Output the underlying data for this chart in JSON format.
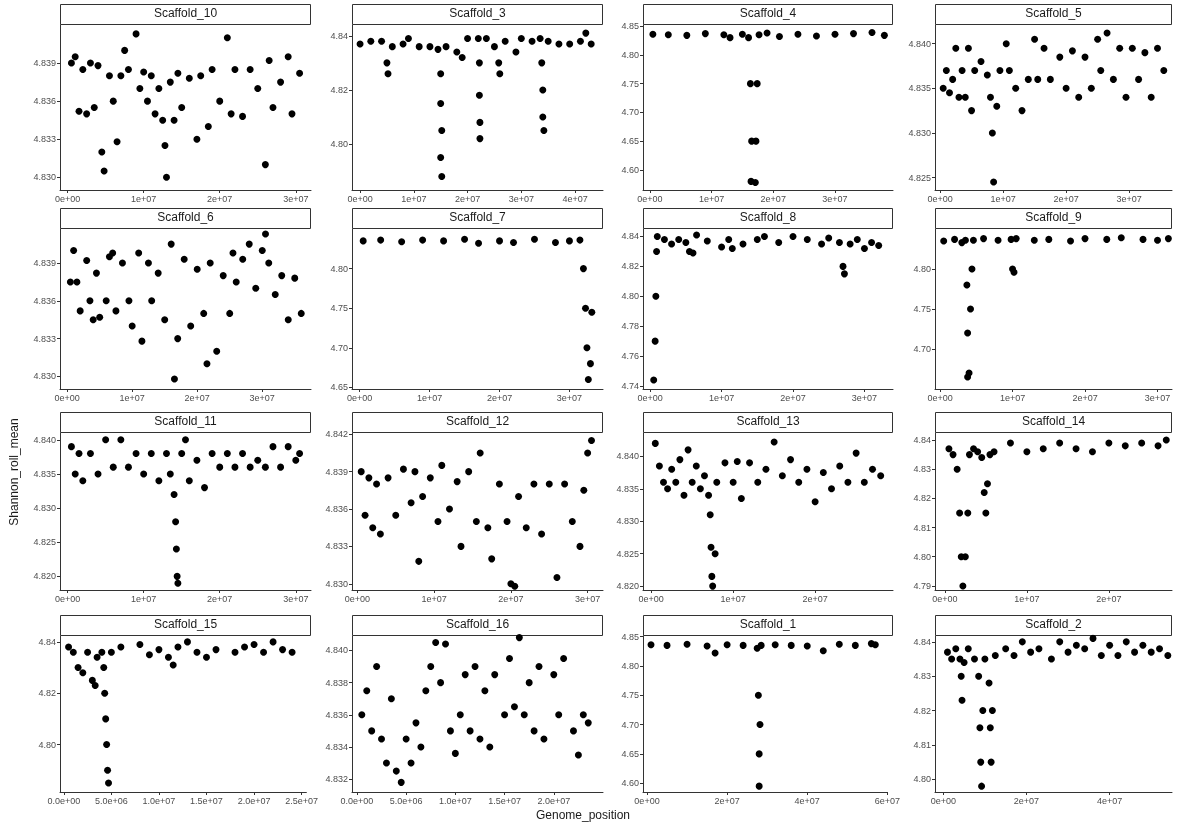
{
  "chart_data": [
    {
      "type": "scatter",
      "title": "Scaffold_10",
      "color": "#000000",
      "marker": "circle",
      "xlim": [
        -1000000,
        32000000
      ],
      "xticks": [
        {
          "value": 0,
          "label": "0e+00"
        },
        {
          "value": 10000000,
          "label": "1e+07"
        },
        {
          "value": 20000000,
          "label": "2e+07"
        },
        {
          "value": 30000000,
          "label": "3e+07"
        }
      ],
      "ylim": [
        4.829,
        4.842
      ],
      "yticks": [
        {
          "value": 4.83,
          "label": "4.830"
        },
        4.833,
        4.836,
        4.839
      ],
      "x": [
        500000.0,
        1000000.0,
        1500000.0,
        2000000.0,
        2500000.0,
        3000000.0,
        3500000.0,
        4000000.0,
        4500000.0,
        4800000.0,
        5500000.0,
        6000000.0,
        6500000.0,
        7000000.0,
        7500000.0,
        8000000.0,
        9000000.0,
        9500000.0,
        10000000.0,
        10500000.0,
        11000000.0,
        11500000.0,
        12000000.0,
        12500000.0,
        12800000.0,
        13000000.0,
        13500000.0,
        14000000.0,
        14500000.0,
        15000000.0,
        16000000.0,
        17000000.0,
        17500000.0,
        18500000.0,
        19000000.0,
        20000000.0,
        21000000.0,
        21500000.0,
        22000000.0,
        23000000.0,
        24000000.0,
        25000000.0,
        26000000.0,
        26500000.0,
        27000000.0,
        28000000.0,
        29000000.0,
        29500000.0,
        30500000.0
      ],
      "values": [
        4.839,
        4.8395,
        4.8352,
        4.8385,
        4.835,
        4.839,
        4.8355,
        4.8388,
        4.832,
        4.8305,
        4.838,
        4.836,
        4.8328,
        4.838,
        4.84,
        4.8385,
        4.8413,
        4.837,
        4.8383,
        4.836,
        4.838,
        4.835,
        4.837,
        4.8345,
        4.8325,
        4.83,
        4.8375,
        4.8345,
        4.8382,
        4.8355,
        4.8378,
        4.833,
        4.838,
        4.834,
        4.8385,
        4.836,
        4.841,
        4.835,
        4.8385,
        4.8348,
        4.8385,
        4.837,
        4.831,
        4.8392,
        4.8355,
        4.8375,
        4.8395,
        4.835,
        4.8382
      ]
    },
    {
      "type": "scatter",
      "title": "Scaffold_3",
      "color": "#000000",
      "marker": "circle",
      "xlim": [
        -1500000,
        45200000
      ],
      "xticks": [
        {
          "value": 0,
          "label": "0e+00"
        },
        {
          "value": 10000000,
          "label": "1e+07"
        },
        {
          "value": 20000000,
          "label": "2e+07"
        },
        {
          "value": 30000000,
          "label": "3e+07"
        },
        {
          "value": 40000000,
          "label": "4e+07"
        }
      ],
      "ylim": [
        4.783,
        4.844
      ],
      "yticks": [
        {
          "value": 4.8,
          "label": "4.80"
        },
        4.82,
        4.84
      ],
      "x": [
        0,
        2000000.0,
        4000000.0,
        5000000.0,
        5200000.0,
        6000000.0,
        8000000.0,
        9000000.0,
        11000000.0,
        13000000.0,
        14500000.0,
        15000000.0,
        15000000.0,
        15200000.0,
        15000000.0,
        15200000.0,
        16000000.0,
        18000000.0,
        19000000.0,
        20000000.0,
        22000000.0,
        22200000.0,
        22200000.0,
        22300000.0,
        22300000.0,
        23500000.0,
        25000000.0,
        25800000.0,
        26000000.0,
        27000000.0,
        29000000.0,
        30000000.0,
        32000000.0,
        33500000.0,
        33800000.0,
        34000000.0,
        34000000.0,
        34200000.0,
        35000000.0,
        37000000.0,
        39000000.0,
        41000000.0,
        42000000.0,
        43000000.0
      ],
      "values": [
        4.837,
        4.838,
        4.838,
        4.83,
        4.826,
        4.836,
        4.837,
        4.839,
        4.836,
        4.836,
        4.835,
        4.826,
        4.815,
        4.805,
        4.795,
        4.788,
        4.836,
        4.834,
        4.832,
        4.839,
        4.839,
        4.83,
        4.818,
        4.808,
        4.802,
        4.839,
        4.836,
        4.83,
        4.826,
        4.838,
        4.834,
        4.839,
        4.838,
        4.839,
        4.83,
        4.82,
        4.81,
        4.805,
        4.838,
        4.837,
        4.837,
        4.838,
        4.841,
        4.837
      ]
    },
    {
      "type": "scatter",
      "title": "Scaffold_4",
      "color": "#000000",
      "marker": "circle",
      "xlim": [
        -1100000,
        39400000
      ],
      "xticks": [
        {
          "value": 0,
          "label": "0e+00"
        },
        {
          "value": 10000000,
          "label": "1e+07"
        },
        {
          "value": 20000000,
          "label": "2e+07"
        },
        {
          "value": 30000000,
          "label": "3e+07"
        }
      ],
      "ylim": [
        4.565,
        4.852
      ],
      "yticks": [
        {
          "value": 4.6,
          "label": "4.60"
        },
        4.65,
        {
          "value": 4.7,
          "label": "4.70"
        },
        4.75,
        {
          "value": 4.8,
          "label": "4.80"
        },
        4.85
      ],
      "x": [
        500000.0,
        3000000.0,
        6000000.0,
        9000000.0,
        12000000.0,
        13000000.0,
        15000000.0,
        16000000.0,
        16300000.0,
        16500000.0,
        16400000.0,
        17100000.0,
        17200000.0,
        17400000.0,
        17700000.0,
        19000000.0,
        21000000.0,
        24000000.0,
        27000000.0,
        30000000.0,
        33000000.0,
        36000000.0,
        38000000.0
      ],
      "values": [
        4.836,
        4.835,
        4.834,
        4.837,
        4.835,
        4.83,
        4.836,
        4.83,
        4.75,
        4.65,
        4.58,
        4.578,
        4.65,
        4.75,
        4.835,
        4.838,
        4.832,
        4.836,
        4.833,
        4.836,
        4.837,
        4.839,
        4.834
      ]
    },
    {
      "type": "scatter",
      "title": "Scaffold_5",
      "color": "#000000",
      "marker": "circle",
      "xlim": [
        -800000,
        36800000
      ],
      "xticks": [
        {
          "value": 0,
          "label": "0e+00"
        },
        {
          "value": 10000000,
          "label": "1e+07"
        },
        {
          "value": 20000000,
          "label": "2e+07"
        },
        {
          "value": 30000000,
          "label": "3e+07"
        }
      ],
      "ylim": [
        4.8236,
        4.8421
      ],
      "yticks": [
        4.825,
        {
          "value": 4.83,
          "label": "4.830"
        },
        4.835,
        {
          "value": 4.84,
          "label": "4.840"
        }
      ],
      "x": [
        500000.0,
        1000000.0,
        1500000.0,
        2000000.0,
        2500000.0,
        3000000.0,
        3500000.0,
        4000000.0,
        4500000.0,
        5000000.0,
        5500000.0,
        6500000.0,
        7500000.0,
        8000000.0,
        8300000.0,
        8500000.0,
        9000000.0,
        9500000.0,
        10500000.0,
        11000000.0,
        12000000.0,
        13000000.0,
        14000000.0,
        15000000.0,
        15500000.0,
        16500000.0,
        17500000.0,
        19000000.0,
        20000000.0,
        21000000.0,
        22000000.0,
        23000000.0,
        24000000.0,
        25000000.0,
        25500000.0,
        26500000.0,
        27500000.0,
        28500000.0,
        29500000.0,
        30500000.0,
        31500000.0,
        32500000.0,
        33500000.0,
        34500000.0,
        35500000.0
      ],
      "values": [
        4.835,
        4.837,
        4.8345,
        4.836,
        4.8395,
        4.834,
        4.837,
        4.834,
        4.8395,
        4.8325,
        4.837,
        4.838,
        4.8365,
        4.834,
        4.83,
        4.8245,
        4.833,
        4.837,
        4.84,
        4.837,
        4.835,
        4.8325,
        4.836,
        4.8405,
        4.836,
        4.8395,
        4.836,
        4.8385,
        4.835,
        4.8392,
        4.834,
        4.8385,
        4.835,
        4.8405,
        4.837,
        4.8412,
        4.836,
        4.8395,
        4.834,
        4.8395,
        4.836,
        4.839,
        4.834,
        4.8395,
        4.837
      ]
    },
    {
      "type": "scatter",
      "title": "Scaffold_6",
      "color": "#000000",
      "marker": "circle",
      "xlim": [
        -1100000,
        37500000
      ],
      "xticks": [
        {
          "value": 0,
          "label": "0e+00"
        },
        {
          "value": 10000000,
          "label": "1e+07"
        },
        {
          "value": 20000000,
          "label": "2e+07"
        },
        {
          "value": 30000000,
          "label": "3e+07"
        }
      ],
      "ylim": [
        4.829,
        4.8417
      ],
      "yticks": [
        {
          "value": 4.83,
          "label": "4.830"
        },
        4.833,
        4.836,
        4.839
      ],
      "x": [
        500000.0,
        1000000.0,
        1500000.0,
        2000000.0,
        3000000.0,
        3500000.0,
        4000000.0,
        4500000.0,
        5000000.0,
        6000000.0,
        6500000.0,
        7000000.0,
        7500000.0,
        8500000.0,
        9500000.0,
        10000000.0,
        11000000.0,
        11500000.0,
        12500000.0,
        13000000.0,
        14000000.0,
        15000000.0,
        16000000.0,
        16500000.0,
        17000000.0,
        18000000.0,
        19000000.0,
        20000000.0,
        21000000.0,
        21500000.0,
        22000000.0,
        23000000.0,
        24000000.0,
        25000000.0,
        25500000.0,
        26000000.0,
        27000000.0,
        28000000.0,
        29000000.0,
        30000000.0,
        30500000.0,
        31000000.0,
        32000000.0,
        33000000.0,
        34000000.0,
        35000000.0,
        36000000.0
      ],
      "values": [
        4.8375,
        4.84,
        4.8375,
        4.8352,
        4.8392,
        4.836,
        4.8345,
        4.8382,
        4.8347,
        4.836,
        4.8395,
        4.8398,
        4.8352,
        4.839,
        4.836,
        4.834,
        4.8398,
        4.8328,
        4.839,
        4.836,
        4.8382,
        4.8345,
        4.8405,
        4.8298,
        4.833,
        4.8393,
        4.834,
        4.8385,
        4.835,
        4.831,
        4.839,
        4.832,
        4.838,
        4.835,
        4.8398,
        4.8375,
        4.8393,
        4.8405,
        4.837,
        4.84,
        4.8413,
        4.839,
        4.8365,
        4.838,
        4.8345,
        4.8378,
        4.835
      ]
    },
    {
      "type": "scatter",
      "title": "Scaffold_7",
      "color": "#000000",
      "marker": "circle",
      "xlim": [
        -1100000,
        34800000
      ],
      "xticks": [
        {
          "value": 0,
          "label": "0e+00"
        },
        {
          "value": 10000000,
          "label": "1e+07"
        },
        {
          "value": 20000000,
          "label": "2e+07"
        },
        {
          "value": 30000000,
          "label": "3e+07"
        }
      ],
      "ylim": [
        4.648,
        4.85
      ],
      "yticks": [
        4.65,
        {
          "value": 4.7,
          "label": "4.70"
        },
        4.75,
        {
          "value": 4.8,
          "label": "4.80"
        }
      ],
      "x": [
        500000.0,
        3000000.0,
        6000000.0,
        9000000.0,
        12000000.0,
        15000000.0,
        17000000.0,
        20000000.0,
        22000000.0,
        25000000.0,
        28000000.0,
        30000000.0,
        31500000.0,
        32000000.0,
        32300000.0,
        32500000.0,
        32700000.0,
        33000000.0,
        33200000.0
      ],
      "values": [
        4.835,
        4.836,
        4.834,
        4.836,
        4.835,
        4.837,
        4.832,
        4.835,
        4.833,
        4.837,
        4.833,
        4.835,
        4.836,
        4.8,
        4.75,
        4.7,
        4.66,
        4.68,
        4.745
      ]
    },
    {
      "type": "scatter",
      "title": "Scaffold_8",
      "color": "#000000",
      "marker": "circle",
      "xlim": [
        -1000000,
        34000000
      ],
      "xticks": [
        {
          "value": 0,
          "label": "0e+00"
        },
        {
          "value": 10000000,
          "label": "1e+07"
        },
        {
          "value": 20000000,
          "label": "2e+07"
        },
        {
          "value": 30000000,
          "label": "3e+07"
        }
      ],
      "ylim": [
        4.738,
        4.845
      ],
      "yticks": [
        4.74,
        4.76,
        4.78,
        {
          "value": 4.8,
          "label": "4.80"
        },
        4.82,
        4.84
      ],
      "x": [
        500000.0,
        700000.0,
        800000.0,
        900000.0,
        1000000.0,
        2000000.0,
        3000000.0,
        4000000.0,
        5000000.0,
        5500000.0,
        6000000.0,
        6500000.0,
        8000000.0,
        10000000.0,
        11000000.0,
        11500000.0,
        13000000.0,
        15000000.0,
        16000000.0,
        18000000.0,
        20000000.0,
        22000000.0,
        24000000.0,
        25000000.0,
        26500000.0,
        27000000.0,
        27200000.0,
        28000000.0,
        29000000.0,
        30000000.0,
        31000000.0,
        32000000.0
      ],
      "values": [
        4.744,
        4.77,
        4.8,
        4.83,
        4.84,
        4.838,
        4.835,
        4.838,
        4.836,
        4.83,
        4.829,
        4.841,
        4.837,
        4.833,
        4.838,
        4.832,
        4.835,
        4.838,
        4.84,
        4.836,
        4.84,
        4.838,
        4.835,
        4.839,
        4.836,
        4.82,
        4.815,
        4.835,
        4.838,
        4.832,
        4.836,
        4.834
      ]
    },
    {
      "type": "scatter",
      "title": "Scaffold_9",
      "color": "#000000",
      "marker": "circle",
      "xlim": [
        -700000,
        32000000
      ],
      "xticks": [
        {
          "value": 0,
          "label": "0e+00"
        },
        {
          "value": 10000000,
          "label": "1e+07"
        },
        {
          "value": 20000000,
          "label": "2e+07"
        },
        {
          "value": 30000000,
          "label": "3e+07"
        }
      ],
      "ylim": [
        4.65,
        4.85
      ],
      "yticks": [
        {
          "value": 4.7,
          "label": "4.70"
        },
        4.75,
        {
          "value": 4.8,
          "label": "4.80"
        }
      ],
      "x": [
        500000.0,
        2000000.0,
        3000000.0,
        3500000.0,
        3700000.0,
        3800000.0,
        3800000.0,
        4000000.0,
        4200000.0,
        4400000.0,
        4600000.0,
        6000000.0,
        8000000.0,
        9800000.0,
        10000000.0,
        10200000.0,
        10500000.0,
        13000000.0,
        15000000.0,
        18000000.0,
        20000000.0,
        23000000.0,
        25000000.0,
        28000000.0,
        30000000.0,
        31500000.0
      ],
      "values": [
        4.835,
        4.837,
        4.833,
        4.836,
        4.78,
        4.72,
        4.665,
        4.67,
        4.75,
        4.8,
        4.836,
        4.838,
        4.836,
        4.837,
        4.8,
        4.796,
        4.838,
        4.836,
        4.837,
        4.835,
        4.838,
        4.837,
        4.839,
        4.837,
        4.836,
        4.838
      ]
    },
    {
      "type": "scatter",
      "title": "Scaffold_11",
      "ylabel": "Shannon_roll_mean",
      "color": "#000000",
      "marker": "circle",
      "xlim": [
        -1000000,
        32000000
      ],
      "xticks": [
        {
          "value": 0,
          "label": "0e+00"
        },
        {
          "value": 10000000,
          "label": "1e+07"
        },
        {
          "value": 20000000,
          "label": "2e+07"
        },
        {
          "value": 30000000,
          "label": "3e+07"
        }
      ],
      "ylim": [
        4.818,
        4.841
      ],
      "yticks": [
        {
          "value": 4.82,
          "label": "4.820"
        },
        4.825,
        {
          "value": 4.83,
          "label": "4.830"
        },
        4.835,
        {
          "value": 4.84,
          "label": "4.840"
        }
      ],
      "x": [
        500000.0,
        1000000.0,
        1500000.0,
        2000000.0,
        3000000.0,
        4000000.0,
        5000000.0,
        6000000.0,
        7000000.0,
        8000000.0,
        9000000.0,
        10000000.0,
        11000000.0,
        12000000.0,
        13000000.0,
        13500000.0,
        14000000.0,
        14200000.0,
        14300000.0,
        14400000.0,
        14500000.0,
        15000000.0,
        15500000.0,
        16000000.0,
        17000000.0,
        18000000.0,
        19000000.0,
        20000000.0,
        21000000.0,
        22000000.0,
        23000000.0,
        24000000.0,
        25000000.0,
        26000000.0,
        27000000.0,
        28000000.0,
        29000000.0,
        30000000.0,
        30500000.0
      ],
      "values": [
        4.839,
        4.835,
        4.838,
        4.834,
        4.838,
        4.835,
        4.84,
        4.836,
        4.84,
        4.836,
        4.838,
        4.835,
        4.838,
        4.834,
        4.838,
        4.835,
        4.832,
        4.828,
        4.824,
        4.82,
        4.819,
        4.838,
        4.84,
        4.834,
        4.837,
        4.833,
        4.838,
        4.836,
        4.838,
        4.836,
        4.838,
        4.836,
        4.837,
        4.836,
        4.839,
        4.836,
        4.839,
        4.837,
        4.838
      ]
    },
    {
      "type": "scatter",
      "title": "Scaffold_12",
      "color": "#000000",
      "marker": "circle",
      "xlim": [
        -700000,
        32000000
      ],
      "xticks": [
        {
          "value": 0,
          "label": "0e+00"
        },
        {
          "value": 10000000,
          "label": "1e+07"
        },
        {
          "value": 20000000,
          "label": "2e+07"
        },
        {
          "value": 30000000,
          "label": "3e+07"
        }
      ],
      "ylim": [
        4.8295,
        4.8421
      ],
      "yticks": [
        {
          "value": 4.83,
          "label": "4.830"
        },
        4.833,
        4.836,
        4.839,
        4.842
      ],
      "x": [
        500000.0,
        1000000.0,
        1500000.0,
        2000000.0,
        2500000.0,
        3000000.0,
        4000000.0,
        5000000.0,
        6000000.0,
        7000000.0,
        7500000.0,
        8000000.0,
        8500000.0,
        9500000.0,
        10500000.0,
        11000000.0,
        12000000.0,
        13000000.0,
        13500000.0,
        14500000.0,
        15500000.0,
        16000000.0,
        17000000.0,
        17500000.0,
        18500000.0,
        19500000.0,
        20000000.0,
        20500000.0,
        21000000.0,
        22000000.0,
        23000000.0,
        24000000.0,
        25000000.0,
        26000000.0,
        27000000.0,
        28000000.0,
        29000000.0,
        29500000.0,
        30000000.0,
        30500000.0
      ],
      "values": [
        4.839,
        4.8355,
        4.8385,
        4.8345,
        4.838,
        4.834,
        4.8385,
        4.8355,
        4.8392,
        4.8365,
        4.839,
        4.8318,
        4.837,
        4.8385,
        4.835,
        4.8395,
        4.836,
        4.8382,
        4.833,
        4.839,
        4.835,
        4.8405,
        4.8345,
        4.832,
        4.838,
        4.835,
        4.83,
        4.8298,
        4.837,
        4.8345,
        4.838,
        4.834,
        4.838,
        4.8305,
        4.838,
        4.835,
        4.833,
        4.8375,
        4.8405,
        4.8415
      ]
    },
    {
      "type": "scatter",
      "title": "Scaffold_13",
      "color": "#000000",
      "marker": "circle",
      "xlim": [
        -1000000,
        29500000
      ],
      "xticks": [
        {
          "value": 0,
          "label": "0e+00"
        },
        {
          "value": 10000000,
          "label": "1e+07"
        },
        {
          "value": 20000000,
          "label": "2e+07"
        }
      ],
      "ylim": [
        4.8194,
        4.8436
      ],
      "yticks": [
        {
          "value": 4.82,
          "label": "4.820"
        },
        4.825,
        {
          "value": 4.83,
          "label": "4.830"
        },
        4.835,
        {
          "value": 4.84,
          "label": "4.840"
        }
      ],
      "x": [
        500000.0,
        1000000.0,
        1500000.0,
        2000000.0,
        2500000.0,
        3000000.0,
        3500000.0,
        4000000.0,
        4500000.0,
        5000000.0,
        5500000.0,
        6000000.0,
        6500000.0,
        7000000.0,
        7200000.0,
        7300000.0,
        7400000.0,
        7500000.0,
        7800000.0,
        8000000.0,
        9000000.0,
        10000000.0,
        10500000.0,
        11000000.0,
        12000000.0,
        13000000.0,
        14000000.0,
        15000000.0,
        16000000.0,
        17000000.0,
        18000000.0,
        19000000.0,
        20000000.0,
        21000000.0,
        22000000.0,
        23000000.0,
        24000000.0,
        25000000.0,
        26000000.0,
        27000000.0,
        28000000.0
      ],
      "values": [
        4.842,
        4.8385,
        4.836,
        4.835,
        4.838,
        4.836,
        4.8395,
        4.834,
        4.841,
        4.836,
        4.8385,
        4.835,
        4.837,
        4.834,
        4.831,
        4.826,
        4.8215,
        4.82,
        4.825,
        4.836,
        4.839,
        4.836,
        4.8392,
        4.8335,
        4.839,
        4.836,
        4.838,
        4.8422,
        4.837,
        4.8395,
        4.836,
        4.838,
        4.833,
        4.8375,
        4.835,
        4.8385,
        4.836,
        4.8405,
        4.836,
        4.838,
        4.837
      ]
    },
    {
      "type": "scatter",
      "title": "Scaffold_14",
      "color": "#000000",
      "marker": "circle",
      "xlim": [
        -1200000,
        27700000
      ],
      "xticks": [
        {
          "value": 0,
          "label": "0e+00"
        },
        {
          "value": 10000000,
          "label": "1e+07"
        },
        {
          "value": 20000000,
          "label": "2e+07"
        }
      ],
      "ylim": [
        4.7886,
        4.8424
      ],
      "yticks": [
        4.79,
        {
          "value": 4.8,
          "label": "4.80"
        },
        4.81,
        4.82,
        4.83,
        4.84
      ],
      "x": [
        500000.0,
        1000000.0,
        1500000.0,
        1800000.0,
        2000000.0,
        2200000.0,
        2500000.0,
        2800000.0,
        3000000.0,
        3500000.0,
        4000000.0,
        4500000.0,
        4800000.0,
        5000000.0,
        5200000.0,
        5500000.0,
        6000000.0,
        8000000.0,
        10000000.0,
        12000000.0,
        14000000.0,
        16000000.0,
        18000000.0,
        20000000.0,
        22000000.0,
        24000000.0,
        26000000.0,
        27000000.0
      ],
      "values": [
        4.837,
        4.835,
        4.83,
        4.815,
        4.8,
        4.79,
        4.8,
        4.815,
        4.835,
        4.837,
        4.836,
        4.834,
        4.822,
        4.815,
        4.825,
        4.835,
        4.836,
        4.839,
        4.836,
        4.837,
        4.839,
        4.837,
        4.836,
        4.839,
        4.838,
        4.839,
        4.838,
        4.84
      ]
    },
    {
      "type": "scatter",
      "title": "Scaffold_15",
      "color": "#000000",
      "marker": "circle",
      "xlim": [
        -400000,
        25500000
      ],
      "xticks": [
        {
          "value": 0,
          "label": "0.0e+00"
        },
        {
          "value": 5000000,
          "label": "5.0e+06"
        },
        {
          "value": 10000000,
          "label": "1.0e+07"
        },
        {
          "value": 15000000,
          "label": "1.5e+07"
        },
        {
          "value": 20000000,
          "label": "2.0e+07"
        },
        {
          "value": 25000000,
          "label": "2.5e+07"
        }
      ],
      "ylim": [
        4.7815,
        4.8423
      ],
      "yticks": [
        {
          "value": 4.8,
          "label": "4.80"
        },
        4.82,
        4.84
      ],
      "x": [
        500000.0,
        1000000.0,
        1500000.0,
        2000000.0,
        2500000.0,
        3000000.0,
        3300000.0,
        3500000.0,
        4000000.0,
        4200000.0,
        4300000.0,
        4400000.0,
        4500000.0,
        4600000.0,
        4700000.0,
        5000000.0,
        6000000.0,
        8000000.0,
        9000000.0,
        10000000.0,
        11000000.0,
        11500000.0,
        12000000.0,
        13000000.0,
        14000000.0,
        15000000.0,
        16000000.0,
        18000000.0,
        19000000.0,
        20000000.0,
        21000000.0,
        22000000.0,
        23000000.0,
        24000000.0
      ],
      "values": [
        4.838,
        4.836,
        4.83,
        4.828,
        4.836,
        4.825,
        4.823,
        4.834,
        4.836,
        4.83,
        4.82,
        4.81,
        4.8,
        4.79,
        4.785,
        4.836,
        4.838,
        4.839,
        4.835,
        4.837,
        4.834,
        4.831,
        4.838,
        4.84,
        4.836,
        4.834,
        4.837,
        4.836,
        4.838,
        4.839,
        4.836,
        4.84,
        4.837,
        4.836
      ]
    },
    {
      "type": "scatter",
      "title": "Scaffold_16",
      "xlabel": "Genome_position",
      "color": "#000000",
      "marker": "circle",
      "xlim": [
        -500000,
        25000000
      ],
      "xticks": [
        {
          "value": 0,
          "label": "0.0e+00"
        },
        {
          "value": 5000000,
          "label": "5.0e+06"
        },
        {
          "value": 10000000,
          "label": "1.0e+07"
        },
        {
          "value": 15000000,
          "label": "1.5e+07"
        },
        {
          "value": 20000000,
          "label": "2.0e+07"
        }
      ],
      "ylim": [
        4.8312,
        4.8409
      ],
      "yticks": [
        4.832,
        4.834,
        4.836,
        4.838,
        {
          "value": 4.84,
          "label": "4.840"
        }
      ],
      "x": [
        500000.0,
        1000000.0,
        1500000.0,
        2000000.0,
        2500000.0,
        3000000.0,
        3500000.0,
        4000000.0,
        4500000.0,
        5000000.0,
        5500000.0,
        6000000.0,
        6500000.0,
        7000000.0,
        7500000.0,
        8000000.0,
        8500000.0,
        9000000.0,
        9500000.0,
        10000000.0,
        10500000.0,
        11000000.0,
        11500000.0,
        12000000.0,
        12500000.0,
        13000000.0,
        13500000.0,
        14000000.0,
        15000000.0,
        15500000.0,
        16000000.0,
        16500000.0,
        17000000.0,
        17500000.0,
        18000000.0,
        18500000.0,
        19000000.0,
        20000000.0,
        20500000.0,
        21000000.0,
        22000000.0,
        22500000.0,
        23000000.0,
        23500000.0
      ],
      "values": [
        4.836,
        4.8375,
        4.835,
        4.839,
        4.8345,
        4.833,
        4.837,
        4.8325,
        4.8318,
        4.8345,
        4.833,
        4.8355,
        4.834,
        4.8375,
        4.839,
        4.8405,
        4.838,
        4.8404,
        4.835,
        4.8336,
        4.836,
        4.8385,
        4.835,
        4.839,
        4.8345,
        4.8375,
        4.834,
        4.8385,
        4.836,
        4.8395,
        4.8365,
        4.8408,
        4.836,
        4.838,
        4.835,
        4.839,
        4.8345,
        4.8385,
        4.836,
        4.8395,
        4.835,
        4.8335,
        4.836,
        4.8355
      ]
    },
    {
      "type": "scatter",
      "title": "Scaffold_1",
      "color": "#000000",
      "marker": "circle",
      "xlim": [
        -1000000,
        60000000
      ],
      "xticks": [
        {
          "value": 0,
          "label": "0e+00"
        },
        {
          "value": 20000000,
          "label": "2e+07"
        },
        {
          "value": 40000000,
          "label": "4e+07"
        },
        {
          "value": 60000000,
          "label": "6e+07"
        }
      ],
      "ylim": [
        4.585,
        4.851
      ],
      "yticks": [
        {
          "value": 4.6,
          "label": "4.60"
        },
        4.65,
        {
          "value": 4.7,
          "label": "4.70"
        },
        4.75,
        {
          "value": 4.8,
          "label": "4.80"
        },
        4.85
      ],
      "x": [
        1000000.0,
        5000000.0,
        10000000.0,
        15000000.0,
        17000000.0,
        20000000.0,
        24000000.0,
        27500000.0,
        27800000.0,
        28000000.0,
        28000000.0,
        28200000.0,
        28500000.0,
        32000000.0,
        36000000.0,
        40000000.0,
        44000000.0,
        48000000.0,
        52000000.0,
        56000000.0,
        57000000.0
      ],
      "values": [
        4.836,
        4.835,
        4.837,
        4.834,
        4.822,
        4.836,
        4.835,
        4.83,
        4.75,
        4.65,
        4.595,
        4.7,
        4.835,
        4.836,
        4.835,
        4.834,
        4.826,
        4.837,
        4.835,
        4.838,
        4.836
      ]
    },
    {
      "type": "scatter",
      "title": "Scaffold_2",
      "color": "#000000",
      "marker": "circle",
      "xlim": [
        -2000000,
        55000000
      ],
      "xticks": [
        {
          "value": 0,
          "label": "0e+00"
        },
        {
          "value": 20000000,
          "label": "2e+07"
        },
        {
          "value": 40000000,
          "label": "4e+07"
        }
      ],
      "ylim": [
        4.7963,
        4.8417
      ],
      "yticks": [
        {
          "value": 4.8,
          "label": "4.80"
        },
        4.81,
        4.82,
        4.83,
        4.84
      ],
      "x": [
        1000000.0,
        2000000.0,
        3000000.0,
        4000000.0,
        4300000.0,
        4500000.0,
        5000000.0,
        6000000.0,
        7500000.0,
        8500000.0,
        8800000.0,
        9000000.0,
        9200000.0,
        9500000.0,
        10000000.0,
        11000000.0,
        11300000.0,
        11500000.0,
        11800000.0,
        12500000.0,
        15000000.0,
        17000000.0,
        19000000.0,
        21000000.0,
        23000000.0,
        26000000.0,
        28000000.0,
        30000000.0,
        32000000.0,
        34000000.0,
        36000000.0,
        38000000.0,
        40000000.0,
        42000000.0,
        44000000.0,
        46000000.0,
        48000000.0,
        50000000.0,
        52000000.0,
        54000000.0
      ],
      "values": [
        4.837,
        4.835,
        4.838,
        4.835,
        4.83,
        4.823,
        4.834,
        4.838,
        4.835,
        4.83,
        4.815,
        4.805,
        4.798,
        4.82,
        4.835,
        4.828,
        4.815,
        4.805,
        4.82,
        4.836,
        4.838,
        4.836,
        4.84,
        4.837,
        4.838,
        4.835,
        4.84,
        4.837,
        4.839,
        4.838,
        4.841,
        4.836,
        4.839,
        4.836,
        4.84,
        4.837,
        4.839,
        4.837,
        4.838,
        4.836
      ]
    }
  ]
}
